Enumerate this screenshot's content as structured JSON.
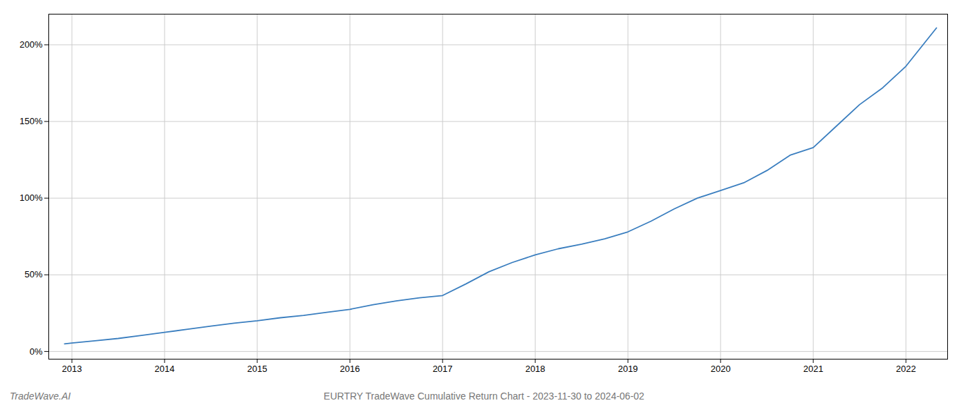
{
  "chart_data": {
    "type": "line",
    "title": "EURTRY TradeWave Cumulative Return Chart - 2023-11-30 to 2024-06-02",
    "annotations": [
      "TradeWave.AI"
    ],
    "x": [
      2012.92,
      2013.0,
      2013.25,
      2013.5,
      2013.75,
      2014.0,
      2014.25,
      2014.5,
      2014.75,
      2015.0,
      2015.25,
      2015.5,
      2015.75,
      2016.0,
      2016.25,
      2016.5,
      2016.75,
      2017.0,
      2017.25,
      2017.5,
      2017.75,
      2018.0,
      2018.25,
      2018.5,
      2018.75,
      2019.0,
      2019.25,
      2019.5,
      2019.75,
      2020.0,
      2020.25,
      2020.5,
      2020.75,
      2021.0,
      2021.25,
      2021.5,
      2021.75,
      2022.0,
      2022.33
    ],
    "values": [
      5.0,
      5.5,
      7.0,
      8.5,
      10.5,
      12.5,
      14.5,
      16.5,
      18.5,
      20.0,
      22.0,
      23.5,
      25.5,
      27.5,
      30.5,
      33.0,
      35.0,
      36.5,
      44.0,
      52.0,
      58.0,
      63.0,
      67.0,
      70.0,
      73.5,
      78.0,
      85.0,
      93.0,
      100.0,
      105.0,
      110.0,
      118.0,
      128.0,
      133.0,
      147.0,
      161.0,
      172.0,
      186.0,
      211.0
    ],
    "color": "#3a7ebf",
    "xlim": [
      2012.75,
      2022.45
    ],
    "xticks": [
      2013,
      2014,
      2015,
      2016,
      2017,
      2018,
      2019,
      2020,
      2021,
      2022
    ],
    "ylim": [
      -5,
      220
    ],
    "yticks": [
      {
        "value": 0,
        "label": "0%"
      },
      {
        "value": 50,
        "label": "50%"
      },
      {
        "value": 100,
        "label": "100%"
      },
      {
        "value": 150,
        "label": "150%"
      },
      {
        "value": 200,
        "label": "200%"
      }
    ],
    "grid": true
  }
}
